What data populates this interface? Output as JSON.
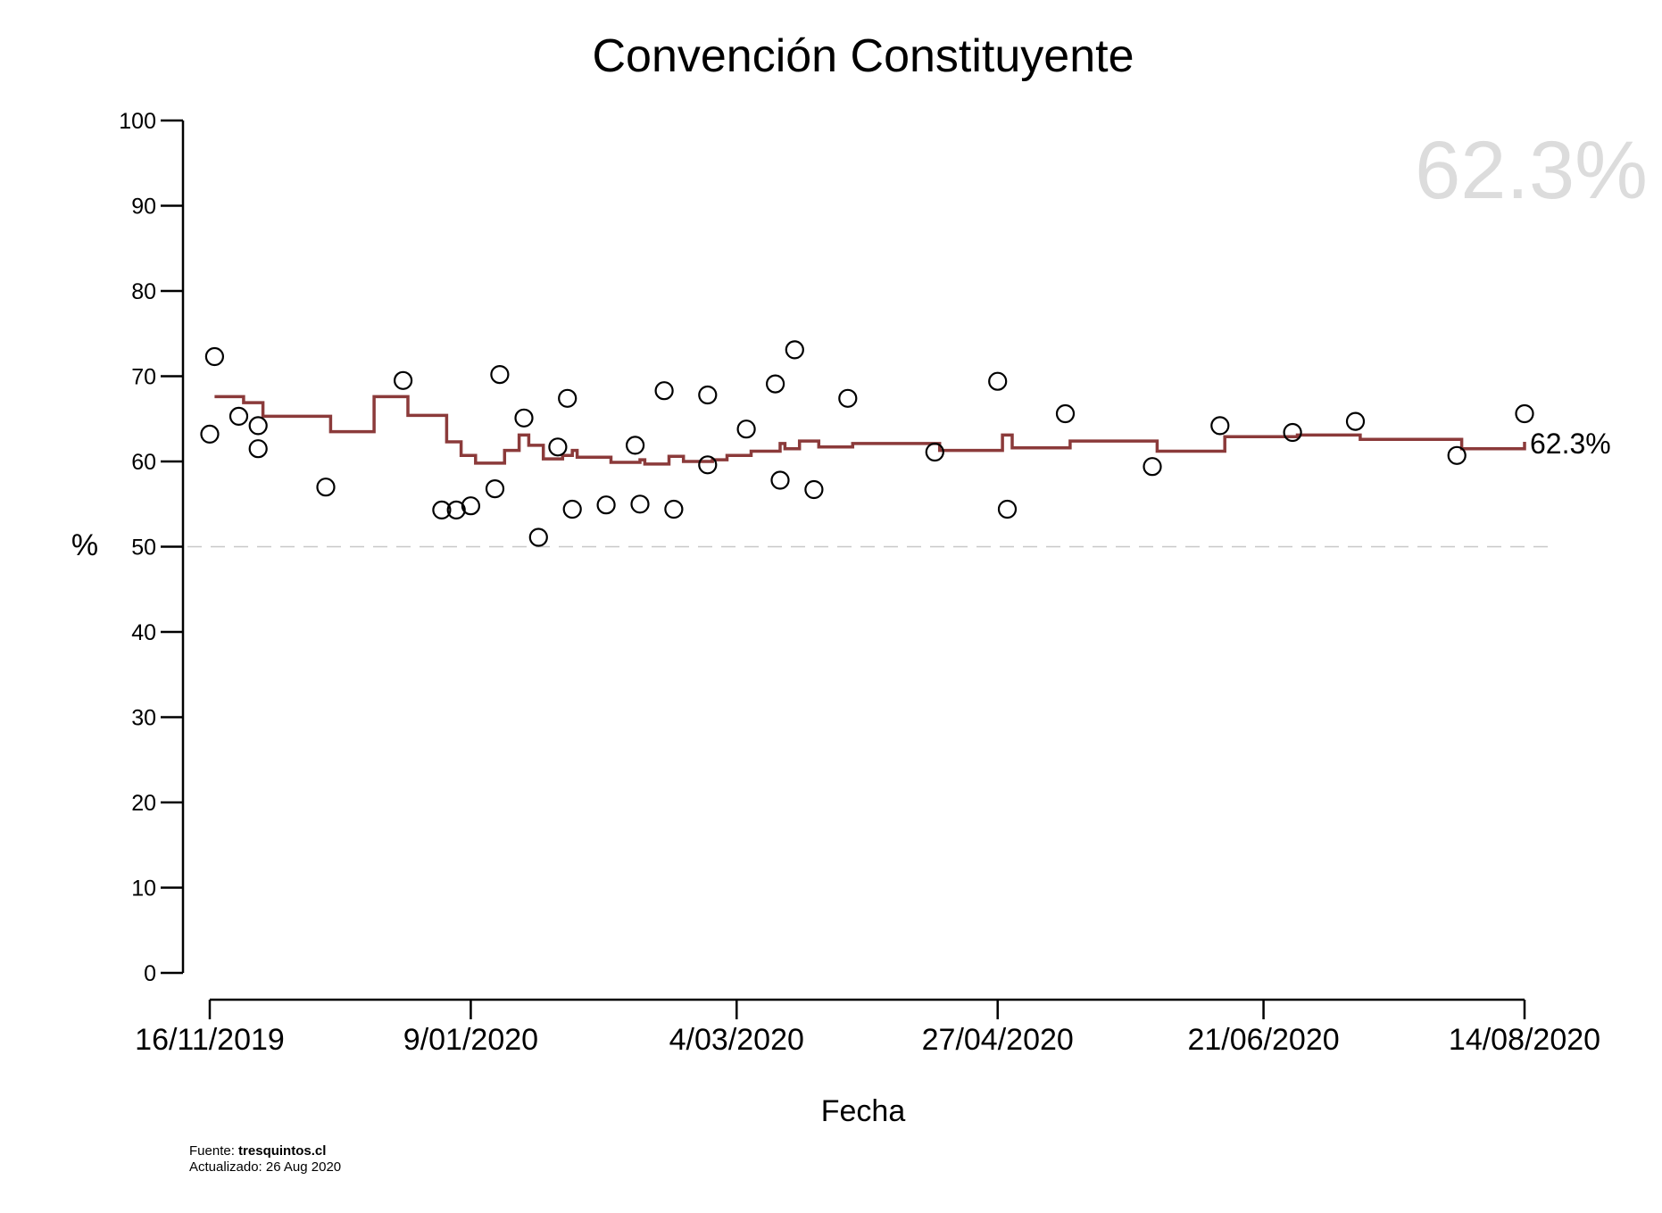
{
  "chart_data": {
    "type": "scatter",
    "title": "Convención Constituyente",
    "xlabel": "Fecha",
    "ylabel": "%",
    "ylim": [
      0,
      100
    ],
    "xlim": [
      "2019-11-16",
      "2020-08-14"
    ],
    "yticks": [
      0,
      10,
      20,
      30,
      40,
      50,
      60,
      70,
      80,
      90,
      100
    ],
    "xticks": [
      {
        "date": "2019-11-16",
        "label": "16/11/2019"
      },
      {
        "date": "2020-01-09",
        "label": "9/01/2020"
      },
      {
        "date": "2020-03-04",
        "label": "4/03/2020"
      },
      {
        "date": "2020-04-27",
        "label": "27/04/2020"
      },
      {
        "date": "2020-06-21",
        "label": "21/06/2020"
      },
      {
        "date": "2020-08-14",
        "label": "14/08/2020"
      }
    ],
    "reference_line": 50,
    "big_value_label": "62.3%",
    "end_value_label": "62.3%",
    "colors": {
      "trend": "#8b3a3a",
      "points": "#000000",
      "reference": "#c8c8c8",
      "big_label": "#dcdcdc"
    },
    "polls": [
      {
        "x": "2019-11-16",
        "y": 63.2
      },
      {
        "x": "2019-11-17",
        "y": 72.3
      },
      {
        "x": "2019-11-22",
        "y": 65.3
      },
      {
        "x": "2019-11-26",
        "y": 64.2
      },
      {
        "x": "2019-11-26",
        "y": 61.5
      },
      {
        "x": "2019-12-10",
        "y": 57.0
      },
      {
        "x": "2019-12-26",
        "y": 69.5
      },
      {
        "x": "2020-01-03",
        "y": 54.3
      },
      {
        "x": "2020-01-06",
        "y": 54.3
      },
      {
        "x": "2020-01-09",
        "y": 54.8
      },
      {
        "x": "2020-01-14",
        "y": 56.8
      },
      {
        "x": "2020-01-15",
        "y": 70.2
      },
      {
        "x": "2020-01-20",
        "y": 65.1
      },
      {
        "x": "2020-01-23",
        "y": 51.1
      },
      {
        "x": "2020-01-27",
        "y": 61.7
      },
      {
        "x": "2020-01-29",
        "y": 67.4
      },
      {
        "x": "2020-01-30",
        "y": 54.4
      },
      {
        "x": "2020-02-06",
        "y": 54.9
      },
      {
        "x": "2020-02-12",
        "y": 61.9
      },
      {
        "x": "2020-02-13",
        "y": 55.0
      },
      {
        "x": "2020-02-18",
        "y": 68.3
      },
      {
        "x": "2020-02-20",
        "y": 54.4
      },
      {
        "x": "2020-02-27",
        "y": 67.8
      },
      {
        "x": "2020-02-27",
        "y": 59.6
      },
      {
        "x": "2020-03-06",
        "y": 63.8
      },
      {
        "x": "2020-03-12",
        "y": 69.1
      },
      {
        "x": "2020-03-13",
        "y": 57.8
      },
      {
        "x": "2020-03-16",
        "y": 73.1
      },
      {
        "x": "2020-03-20",
        "y": 56.7
      },
      {
        "x": "2020-03-27",
        "y": 67.4
      },
      {
        "x": "2020-04-14",
        "y": 61.1
      },
      {
        "x": "2020-04-27",
        "y": 69.4
      },
      {
        "x": "2020-04-29",
        "y": 54.4
      },
      {
        "x": "2020-05-11",
        "y": 65.6
      },
      {
        "x": "2020-05-29",
        "y": 59.4
      },
      {
        "x": "2020-06-12",
        "y": 64.2
      },
      {
        "x": "2020-06-27",
        "y": 63.4
      },
      {
        "x": "2020-07-10",
        "y": 64.7
      },
      {
        "x": "2020-07-31",
        "y": 60.7
      },
      {
        "x": "2020-08-14",
        "y": 65.6
      }
    ],
    "trend": [
      {
        "x": "2019-11-17",
        "y": 67.6
      },
      {
        "x": "2019-11-23",
        "y": 66.9
      },
      {
        "x": "2019-11-27",
        "y": 65.3
      },
      {
        "x": "2019-12-11",
        "y": 63.5
      },
      {
        "x": "2019-12-20",
        "y": 67.6
      },
      {
        "x": "2019-12-27",
        "y": 65.4
      },
      {
        "x": "2020-01-04",
        "y": 62.3
      },
      {
        "x": "2020-01-07",
        "y": 60.7
      },
      {
        "x": "2020-01-10",
        "y": 59.8
      },
      {
        "x": "2020-01-16",
        "y": 61.3
      },
      {
        "x": "2020-01-19",
        "y": 63.1
      },
      {
        "x": "2020-01-21",
        "y": 61.9
      },
      {
        "x": "2020-01-24",
        "y": 60.3
      },
      {
        "x": "2020-01-28",
        "y": 60.7
      },
      {
        "x": "2020-01-30",
        "y": 61.3
      },
      {
        "x": "2020-01-31",
        "y": 60.5
      },
      {
        "x": "2020-02-07",
        "y": 59.9
      },
      {
        "x": "2020-02-13",
        "y": 60.2
      },
      {
        "x": "2020-02-14",
        "y": 59.7
      },
      {
        "x": "2020-02-19",
        "y": 60.6
      },
      {
        "x": "2020-02-22",
        "y": 60.0
      },
      {
        "x": "2020-02-28",
        "y": 60.2
      },
      {
        "x": "2020-03-02",
        "y": 60.7
      },
      {
        "x": "2020-03-07",
        "y": 61.2
      },
      {
        "x": "2020-03-13",
        "y": 62.1
      },
      {
        "x": "2020-03-14",
        "y": 61.5
      },
      {
        "x": "2020-03-17",
        "y": 62.4
      },
      {
        "x": "2020-03-21",
        "y": 61.7
      },
      {
        "x": "2020-03-28",
        "y": 62.1
      },
      {
        "x": "2020-04-15",
        "y": 61.3
      },
      {
        "x": "2020-04-28",
        "y": 63.1
      },
      {
        "x": "2020-04-30",
        "y": 61.6
      },
      {
        "x": "2020-05-12",
        "y": 62.4
      },
      {
        "x": "2020-05-30",
        "y": 61.2
      },
      {
        "x": "2020-06-13",
        "y": 62.9
      },
      {
        "x": "2020-06-28",
        "y": 63.1
      },
      {
        "x": "2020-07-11",
        "y": 62.6
      },
      {
        "x": "2020-08-01",
        "y": 61.5
      },
      {
        "x": "2020-08-14",
        "y": 62.3
      }
    ]
  },
  "footer": {
    "source_prefix": "Fuente: ",
    "source_name": "tresquintos.cl",
    "updated": "Actualizado: 26 Aug 2020"
  }
}
